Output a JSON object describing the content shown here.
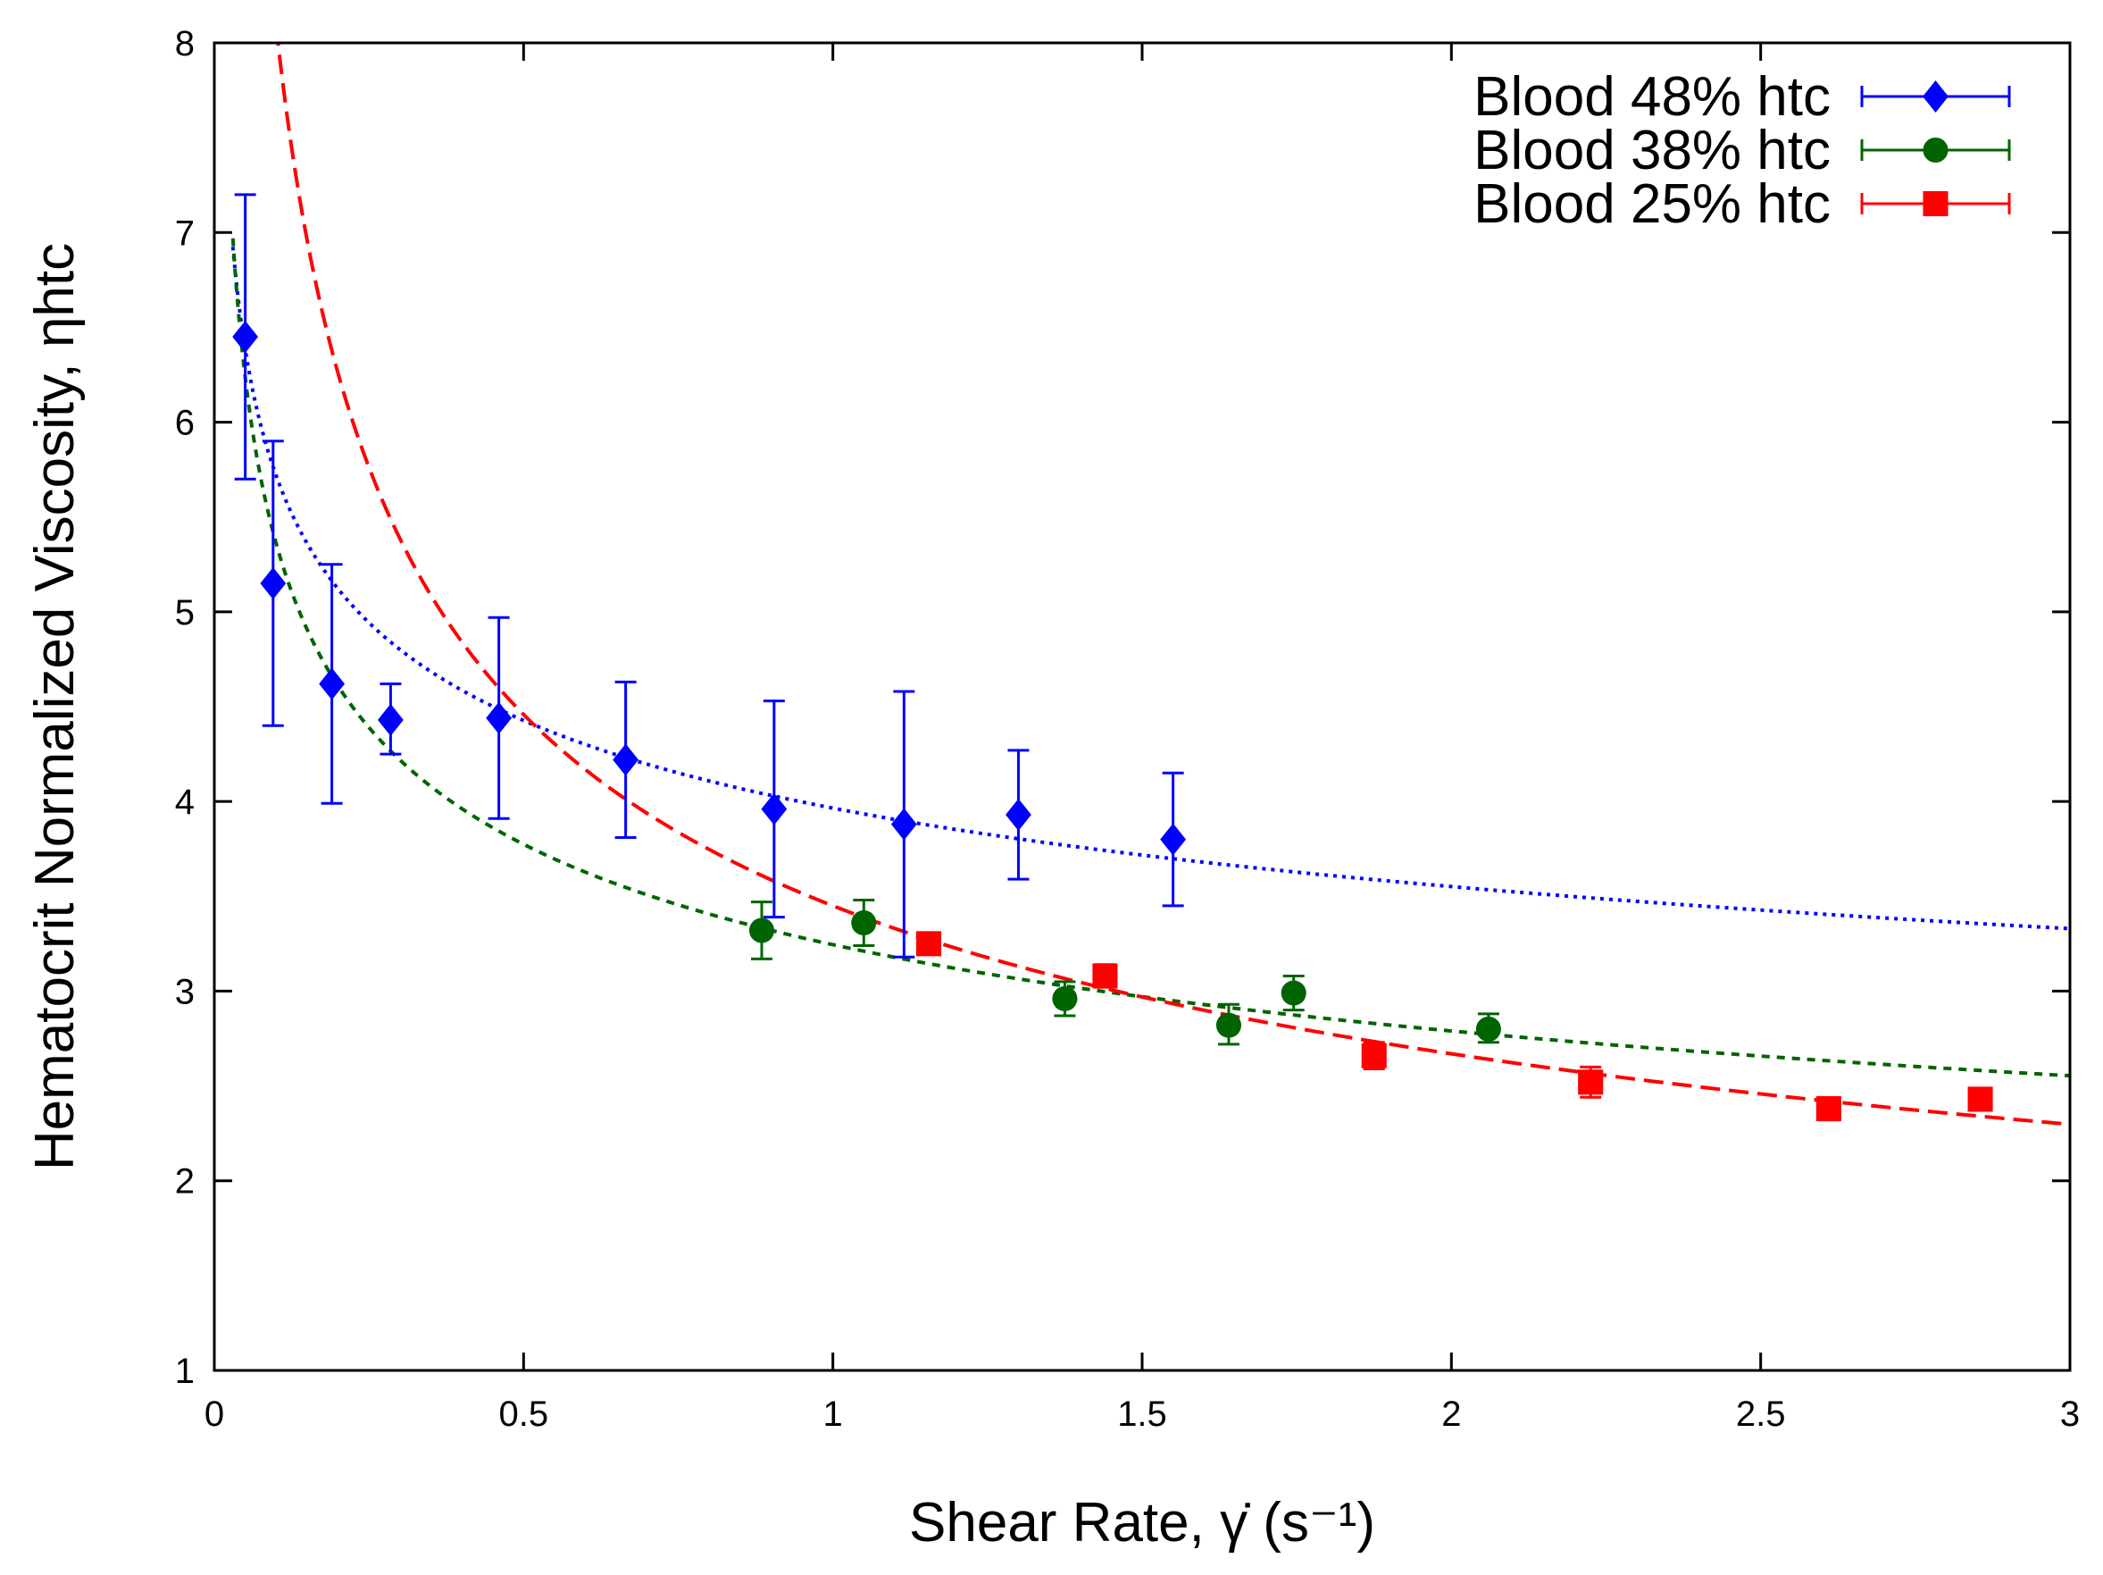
{
  "chart_data": {
    "type": "scatter",
    "xlabel": "Shear Rate, γ̇ (s⁻¹)",
    "ylabel": "Hematocrit Normalized Viscosity, ηhtc",
    "xlim": [
      0,
      3
    ],
    "ylim": [
      1,
      8
    ],
    "x_ticks": [
      "0",
      "0.5",
      "1",
      "1.5",
      "2",
      "2.5",
      "3"
    ],
    "y_ticks": [
      "1",
      "2",
      "3",
      "4",
      "5",
      "6",
      "7",
      "8"
    ],
    "grid": false,
    "legend_position": "top-right",
    "series": [
      {
        "name": "Blood 48% htc",
        "color": "#0000ff",
        "marker": "diamond",
        "points": [
          {
            "x": 0.05,
            "y": 6.45,
            "lo": 5.7,
            "hi": 7.2
          },
          {
            "x": 0.095,
            "y": 5.15,
            "lo": 4.4,
            "hi": 5.9
          },
          {
            "x": 0.19,
            "y": 4.62,
            "lo": 3.99,
            "hi": 5.25
          },
          {
            "x": 0.285,
            "y": 4.43,
            "lo": 4.25,
            "hi": 4.62
          },
          {
            "x": 0.46,
            "y": 4.44,
            "lo": 3.91,
            "hi": 4.97
          },
          {
            "x": 0.665,
            "y": 4.22,
            "lo": 3.81,
            "hi": 4.63
          },
          {
            "x": 0.905,
            "y": 3.96,
            "lo": 3.39,
            "hi": 4.53
          },
          {
            "x": 1.115,
            "y": 3.88,
            "lo": 3.18,
            "hi": 4.58
          },
          {
            "x": 1.3,
            "y": 3.93,
            "lo": 3.59,
            "hi": 4.27
          },
          {
            "x": 1.55,
            "y": 3.8,
            "lo": 3.45,
            "hi": 4.15
          }
        ],
        "fit": {
          "style": "dotted",
          "coef": 3.965,
          "exponent": -0.159,
          "x_start": 0.03
        }
      },
      {
        "name": "Blood 38% htc",
        "color": "#006400",
        "marker": "circle",
        "points": [
          {
            "x": 0.885,
            "y": 3.32,
            "lo": 3.17,
            "hi": 3.47
          },
          {
            "x": 1.05,
            "y": 3.36,
            "lo": 3.24,
            "hi": 3.48
          },
          {
            "x": 1.375,
            "y": 2.96,
            "lo": 2.87,
            "hi": 3.05
          },
          {
            "x": 1.64,
            "y": 2.82,
            "lo": 2.72,
            "hi": 2.93
          },
          {
            "x": 1.745,
            "y": 2.99,
            "lo": 2.9,
            "hi": 3.08
          },
          {
            "x": 2.06,
            "y": 2.8,
            "lo": 2.73,
            "hi": 2.88
          }
        ],
        "fit": {
          "style": "dashed-short",
          "coef": 3.245,
          "exponent": -0.218,
          "x_start": 0.03
        }
      },
      {
        "name": "Blood 25% htc",
        "color": "#ff0000",
        "marker": "square",
        "points": [
          {
            "x": 1.155,
            "y": 3.25,
            "lo": 3.2,
            "hi": 3.3
          },
          {
            "x": 1.44,
            "y": 3.08,
            "lo": 3.02,
            "hi": 3.14
          },
          {
            "x": 1.875,
            "y": 2.66,
            "lo": 2.59,
            "hi": 2.73
          },
          {
            "x": 2.225,
            "y": 2.52,
            "lo": 2.44,
            "hi": 2.6
          },
          {
            "x": 2.61,
            "y": 2.38,
            "lo": 2.35,
            "hi": 2.41
          },
          {
            "x": 2.855,
            "y": 2.43,
            "lo": 2.4,
            "hi": 2.46
          }
        ],
        "fit": {
          "style": "dashed-long",
          "coef": 3.45,
          "exponent": -0.37,
          "x_start": 0.1
        }
      }
    ]
  }
}
